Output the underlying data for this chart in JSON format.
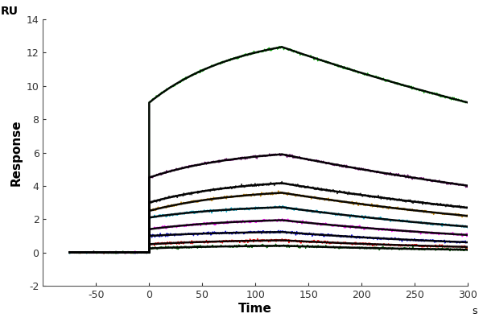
{
  "xlabel": "Time",
  "ylabel": "Response",
  "ru_label": "RU",
  "s_label": "s",
  "xlim": [
    -100,
    300
  ],
  "ylim": [
    -2,
    14
  ],
  "xticks": [
    -50,
    0,
    50,
    100,
    150,
    200,
    250,
    300
  ],
  "yticks": [
    -2,
    0,
    2,
    4,
    6,
    8,
    10,
    12,
    14
  ],
  "t_baseline_start": -75,
  "t_assoc_start": 0,
  "t_assoc_end": 125,
  "t_dissoc_end": 300,
  "background_color": "#ffffff",
  "concentrations": [
    {
      "color": "#00bb00",
      "R0": 9.0,
      "Rmax": 13.3,
      "kd": 0.0018
    },
    {
      "color": "#660066",
      "R0": 4.5,
      "Rmax": 6.3,
      "kd": 0.0022
    },
    {
      "color": "#222222",
      "R0": 3.0,
      "Rmax": 4.5,
      "kd": 0.0025
    },
    {
      "color": "#cc8800",
      "R0": 2.5,
      "Rmax": 3.9,
      "kd": 0.0028
    },
    {
      "color": "#00aacc",
      "R0": 2.1,
      "Rmax": 2.9,
      "kd": 0.0032
    },
    {
      "color": "#ff00ff",
      "R0": 1.4,
      "Rmax": 2.1,
      "kd": 0.0035
    },
    {
      "color": "#0000dd",
      "R0": 1.0,
      "Rmax": 1.3,
      "kd": 0.004
    },
    {
      "color": "#ff0000",
      "R0": 0.5,
      "Rmax": 0.8,
      "kd": 0.0045
    },
    {
      "color": "#006600",
      "R0": 0.25,
      "Rmax": 0.45,
      "kd": 0.005
    }
  ],
  "noise_scale": 0.04,
  "fit_color": "#000000",
  "fit_linewidth": 1.8,
  "data_linewidth": 1.0,
  "tick_fontsize": 9,
  "label_fontsize": 11
}
